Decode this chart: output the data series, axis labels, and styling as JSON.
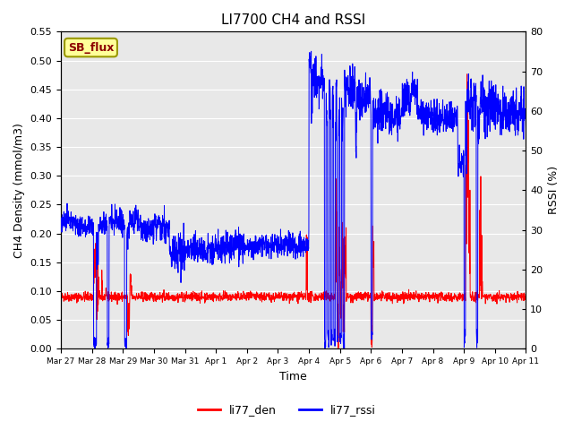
{
  "title": "LI7700 CH4 and RSSI",
  "ylabel_left": "CH4 Density (mmol/m3)",
  "ylabel_right": "RSSI (%)",
  "xlabel": "Time",
  "ylim_left": [
    0.0,
    0.55
  ],
  "ylim_right": [
    0,
    80
  ],
  "yticks_left": [
    0.0,
    0.05,
    0.1,
    0.15,
    0.2,
    0.25,
    0.3,
    0.35,
    0.4,
    0.45,
    0.5,
    0.55
  ],
  "yticks_right": [
    0,
    10,
    20,
    30,
    40,
    50,
    60,
    70,
    80
  ],
  "xtick_labels": [
    "Mar 27",
    "Mar 28",
    "Mar 29",
    "Mar 30",
    "Mar 31",
    "Apr 1",
    "Apr 2",
    "Apr 3",
    "Apr 4",
    "Apr 5",
    "Apr 6",
    "Apr 7",
    "Apr 8",
    "Apr 9",
    "Apr 10",
    "Apr 11"
  ],
  "legend_labels": [
    "li77_den",
    "li77_rssi"
  ],
  "legend_colors": [
    "#ff0000",
    "#0000ff"
  ],
  "annotation_text": "SB_flux",
  "annotation_bbox_facecolor": "#ffff99",
  "annotation_bbox_edgecolor": "#999900",
  "background_color": "#e8e8e8",
  "line_color_red": "#ff0000",
  "line_color_blue": "#0000ff",
  "title_fontsize": 11,
  "axis_fontsize": 9,
  "tick_fontsize": 8
}
